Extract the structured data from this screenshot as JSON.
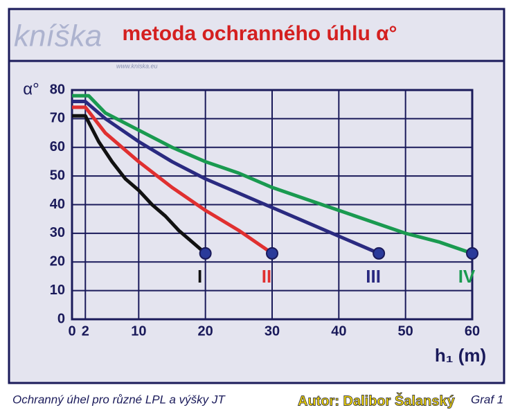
{
  "logo": {
    "text": "kníška",
    "url": "www.kniska.eu"
  },
  "chart_data": {
    "type": "line",
    "title": "metoda ochranného úhlu α°",
    "ylabel": "α°",
    "xlabel": "h₁ (m)",
    "xlim": [
      0,
      60
    ],
    "xticks": [
      0,
      2,
      10,
      20,
      30,
      40,
      50,
      60
    ],
    "ylim": [
      0,
      80
    ],
    "yticks": [
      0,
      10,
      20,
      30,
      40,
      50,
      60,
      70,
      80
    ],
    "grid": true,
    "series": [
      {
        "name": "I",
        "color": "#111111",
        "x": [
          0,
          2,
          4,
          6,
          8,
          10,
          12,
          14,
          16,
          18,
          20
        ],
        "values": [
          71,
          71,
          62,
          55,
          49,
          45,
          40,
          36,
          31,
          27,
          23
        ]
      },
      {
        "name": "II",
        "color": "#e03030",
        "x": [
          0,
          2,
          5,
          10,
          15,
          20,
          25,
          30
        ],
        "values": [
          74,
          74,
          65,
          55,
          46,
          38,
          31,
          23
        ]
      },
      {
        "name": "III",
        "color": "#2a2a80",
        "x": [
          0,
          2,
          5,
          10,
          15,
          20,
          25,
          30,
          35,
          40,
          46
        ],
        "values": [
          76,
          76,
          70,
          62,
          55,
          49,
          44,
          39,
          34,
          29,
          23
        ]
      },
      {
        "name": "IV",
        "color": "#1a9a50",
        "x": [
          0,
          2.5,
          5,
          10,
          15,
          20,
          25,
          30,
          35,
          40,
          45,
          50,
          55,
          60
        ],
        "values": [
          78,
          78,
          72,
          66,
          60,
          55,
          51,
          46,
          42,
          38,
          34,
          30,
          27,
          23
        ]
      }
    ]
  },
  "caption": "Ochranný úhel pro různé LPL a výšky JT",
  "figure_label": "Graf 1",
  "author": "Autor: Dalibor Šalanský"
}
